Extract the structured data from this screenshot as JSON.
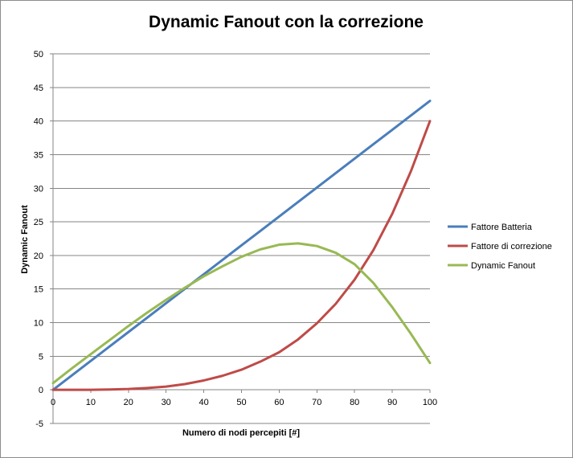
{
  "chart_data": {
    "type": "line",
    "title": "Dynamic Fanout con la correzione",
    "xlabel": "Numero di nodi percepiti [#]",
    "ylabel": "Dynamic Fanout",
    "xlim": [
      0,
      100
    ],
    "ylim": [
      -5,
      50
    ],
    "xticks": [
      "0",
      "10",
      "20",
      "30",
      "40",
      "50",
      "60",
      "70",
      "80",
      "90",
      "100"
    ],
    "yticks": [
      "-5",
      "0",
      "5",
      "10",
      "15",
      "20",
      "25",
      "30",
      "35",
      "40",
      "45",
      "50"
    ],
    "grid": "horizontal",
    "legend_position": "right",
    "x": [
      0,
      5,
      10,
      15,
      20,
      25,
      30,
      35,
      40,
      45,
      50,
      55,
      60,
      65,
      70,
      75,
      80,
      85,
      90,
      95,
      100
    ],
    "series": [
      {
        "name": "Fattore Batteria",
        "color": "#4a7ebb",
        "values": [
          0,
          2.15,
          4.3,
          6.45,
          8.6,
          10.75,
          12.9,
          15.05,
          17.2,
          19.35,
          21.5,
          23.65,
          25.8,
          27.95,
          30.1,
          32.25,
          34.4,
          36.55,
          38.7,
          40.85,
          43
        ]
      },
      {
        "name": "Fattore di correzione",
        "color": "#be4b48",
        "values": [
          0,
          0,
          0.01,
          0.05,
          0.13,
          0.28,
          0.49,
          0.86,
          1.4,
          2.1,
          3.0,
          4.2,
          5.6,
          7.5,
          9.9,
          12.8,
          16.4,
          20.8,
          26.2,
          32.6,
          40.0
        ]
      },
      {
        "name": "Dynamic Fanout",
        "color": "#98b954",
        "values": [
          1.0,
          3.2,
          5.3,
          7.4,
          9.5,
          11.5,
          13.4,
          15.2,
          16.9,
          18.4,
          19.8,
          20.9,
          21.6,
          21.8,
          21.4,
          20.4,
          18.7,
          15.9,
          12.3,
          8.3,
          4.0
        ]
      }
    ]
  }
}
